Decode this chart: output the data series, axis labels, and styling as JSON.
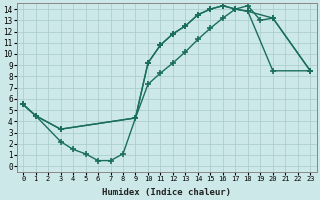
{
  "xlabel": "Humidex (Indice chaleur)",
  "xlim": [
    -0.5,
    23.5
  ],
  "ylim": [
    -0.5,
    14.5
  ],
  "xticks": [
    0,
    1,
    2,
    3,
    4,
    5,
    6,
    7,
    8,
    9,
    10,
    11,
    12,
    13,
    14,
    15,
    16,
    17,
    18,
    19,
    20,
    21,
    22,
    23
  ],
  "yticks": [
    0,
    1,
    2,
    3,
    4,
    5,
    6,
    7,
    8,
    9,
    10,
    11,
    12,
    13,
    14
  ],
  "bg_color": "#cde8e8",
  "grid_color": "#aecece",
  "line_color": "#1a6e5e",
  "line_width": 1.0,
  "marker": "+",
  "marker_size": 5,
  "marker_ew": 1.2,
  "line1_x": [
    0,
    1,
    3,
    9,
    10,
    11,
    12,
    13,
    14,
    15,
    16,
    17,
    18,
    20,
    23
  ],
  "line1_y": [
    5.5,
    4.5,
    3.3,
    4.3,
    9.2,
    10.8,
    11.8,
    12.5,
    13.5,
    14.0,
    14.3,
    14.0,
    13.8,
    13.2,
    8.5
  ],
  "line2_x": [
    0,
    1,
    3,
    4,
    5,
    6,
    7,
    8,
    9,
    10,
    11,
    12,
    13,
    14,
    15,
    16,
    17,
    18,
    20,
    23
  ],
  "line2_y": [
    5.5,
    4.5,
    2.2,
    1.5,
    1.1,
    0.5,
    0.5,
    1.1,
    4.3,
    9.2,
    10.8,
    11.8,
    12.5,
    13.5,
    14.0,
    14.3,
    14.0,
    13.8,
    8.5,
    8.5
  ],
  "line3_x": [
    0,
    1,
    3,
    9,
    10,
    11,
    12,
    13,
    14,
    15,
    16,
    17,
    18,
    19,
    20,
    23
  ],
  "line3_y": [
    5.5,
    4.5,
    3.3,
    4.3,
    7.3,
    8.3,
    9.2,
    10.2,
    11.3,
    12.3,
    13.2,
    14.0,
    14.3,
    13.0,
    13.2,
    8.5
  ]
}
